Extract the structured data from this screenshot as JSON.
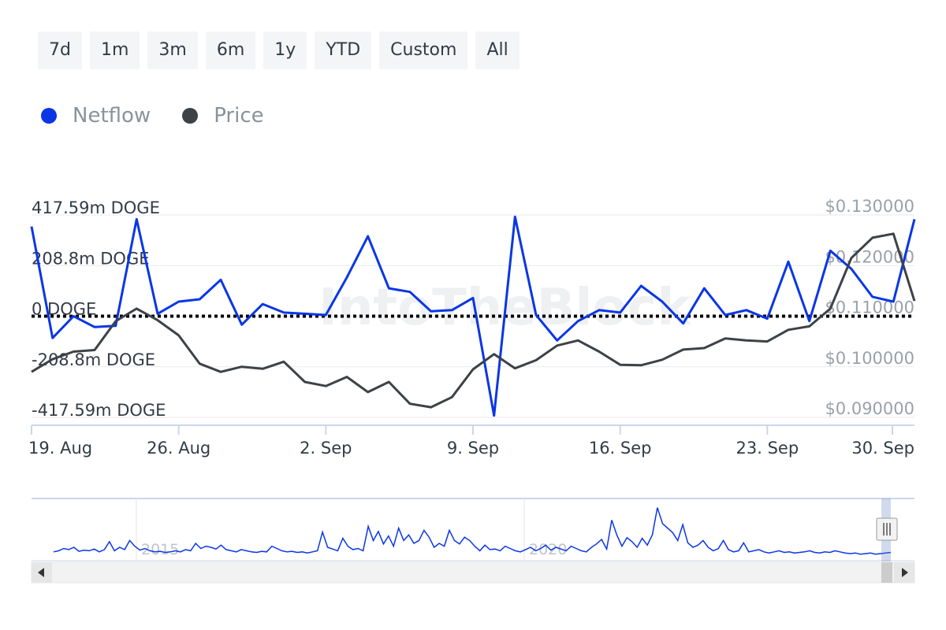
{
  "range_buttons": [
    "7d",
    "1m",
    "3m",
    "6m",
    "1y",
    "YTD",
    "Custom",
    "All"
  ],
  "legend": [
    {
      "label": "Netflow",
      "color": "#0a36e6"
    },
    {
      "label": "Price",
      "color": "#3d4247"
    }
  ],
  "watermark": "IntoTheBlock",
  "navigator": {
    "year_labels": [
      {
        "label": "2015"
      },
      {
        "label": "2020"
      }
    ],
    "left_arrow_icon": "triangle-left-icon",
    "right_arrow_icon": "triangle-right-icon",
    "handle_icon": "grip-handle-icon",
    "overview_series": [
      0.1,
      0.12,
      0.16,
      0.14,
      0.18,
      0.11,
      0.13,
      0.12,
      0.15,
      0.1,
      0.14,
      0.28,
      0.12,
      0.18,
      0.14,
      0.3,
      0.2,
      0.13,
      0.16,
      0.12,
      0.1,
      0.11,
      0.09,
      0.1,
      0.12,
      0.1,
      0.14,
      0.12,
      0.25,
      0.16,
      0.2,
      0.18,
      0.15,
      0.22,
      0.14,
      0.12,
      0.1,
      0.14,
      0.12,
      0.1,
      0.09,
      0.11,
      0.1,
      0.2,
      0.16,
      0.12,
      0.1,
      0.11,
      0.09,
      0.1,
      0.08,
      0.1,
      0.12,
      0.45,
      0.18,
      0.15,
      0.12,
      0.34,
      0.2,
      0.14,
      0.16,
      0.12,
      0.55,
      0.3,
      0.46,
      0.24,
      0.38,
      0.2,
      0.52,
      0.3,
      0.4,
      0.25,
      0.3,
      0.48,
      0.36,
      0.18,
      0.25,
      0.2,
      0.48,
      0.3,
      0.24,
      0.36,
      0.3,
      0.2,
      0.12,
      0.22,
      0.14,
      0.15,
      0.12,
      0.2,
      0.16,
      0.12,
      0.1,
      0.14,
      0.18,
      0.12,
      0.16,
      0.22,
      0.13,
      0.18,
      0.15,
      0.12,
      0.2,
      0.16,
      0.12,
      0.1,
      0.18,
      0.24,
      0.32,
      0.15,
      0.66,
      0.4,
      0.2,
      0.35,
      0.28,
      0.18,
      0.34,
      0.22,
      0.4,
      0.88,
      0.6,
      0.52,
      0.44,
      0.3,
      0.58,
      0.26,
      0.18,
      0.22,
      0.3,
      0.18,
      0.12,
      0.16,
      0.3,
      0.14,
      0.1,
      0.12,
      0.26,
      0.1,
      0.12,
      0.14,
      0.1,
      0.08,
      0.1,
      0.12,
      0.09,
      0.1,
      0.08,
      0.09,
      0.1,
      0.12,
      0.09,
      0.08,
      0.1,
      0.09,
      0.12,
      0.1,
      0.08,
      0.07,
      0.08,
      0.06,
      0.07,
      0.08,
      0.06,
      0.07,
      0.08,
      0.09
    ]
  },
  "chart_data": {
    "type": "line",
    "x_tick_labels": [
      "19. Aug",
      "26. Aug",
      "2. Sep",
      "9. Sep",
      "16. Sep",
      "23. Sep",
      "30. Sep"
    ],
    "x_range": [
      "2024-08-19",
      "2024-09-30"
    ],
    "y_left_ticks": [
      "417.59m DOGE",
      "208.8m DOGE",
      "0 DOGE",
      "-208.8m DOGE",
      "-417.59m DOGE"
    ],
    "y_left_range": [
      -417.59,
      417.59
    ],
    "y_left_unit": "m DOGE",
    "y_right_ticks": [
      "$0.130000",
      "$0.120000",
      "$0.110000",
      "$0.100000",
      "$0.090000"
    ],
    "y_right_range": [
      0.09,
      0.13
    ],
    "reference_line": {
      "value": 0,
      "style": "dotted"
    },
    "grid": true,
    "series": [
      {
        "name": "Netflow",
        "axis": "left",
        "color": "#0a36e6",
        "values": [
          370,
          -90,
          0,
          -45,
          -40,
          400,
          10,
          60,
          70,
          150,
          -35,
          50,
          15,
          10,
          5,
          160,
          330,
          115,
          100,
          20,
          25,
          75,
          -410,
          410,
          5,
          -100,
          -20,
          25,
          15,
          125,
          60,
          -30,
          115,
          5,
          25,
          -10,
          225,
          -20,
          270,
          195,
          80,
          60,
          400
        ]
      },
      {
        "name": "Price",
        "axis": "right",
        "color": "#3d4247",
        "values": [
          0.099,
          0.1015,
          0.103,
          0.1033,
          0.109,
          0.1115,
          0.1092,
          0.1062,
          0.1006,
          0.099,
          0.1,
          0.0996,
          0.101,
          0.097,
          0.0962,
          0.098,
          0.095,
          0.097,
          0.0927,
          0.092,
          0.094,
          0.0995,
          0.1025,
          0.0997,
          0.1013,
          0.1042,
          0.1052,
          0.103,
          0.1004,
          0.1003,
          0.1014,
          0.1034,
          0.1037,
          0.1056,
          0.1052,
          0.105,
          0.1073,
          0.108,
          0.1115,
          0.1215,
          0.1255,
          0.1263,
          0.113
        ]
      }
    ]
  }
}
